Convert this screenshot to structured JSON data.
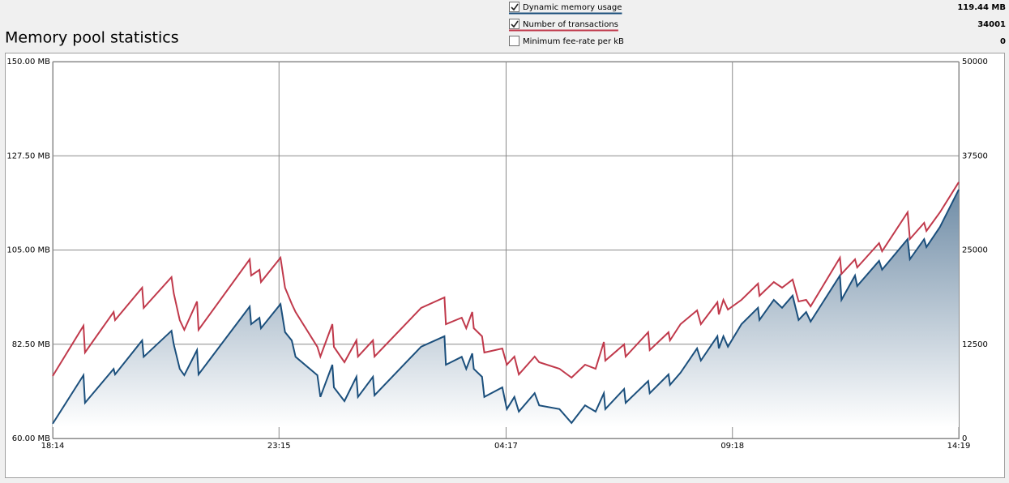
{
  "chart_data": {
    "type": "line",
    "title": "Memory pool statistics",
    "xlim": [
      0,
      1205
    ],
    "xticks": [
      {
        "value": 0,
        "label": "18:14"
      },
      {
        "value": 301,
        "label": "23:15"
      },
      {
        "value": 603,
        "label": "04:17"
      },
      {
        "value": 904,
        "label": "09:18"
      },
      {
        "value": 1205,
        "label": "14:19"
      }
    ],
    "ylim": [
      60,
      150
    ],
    "yticks": [
      {
        "value": 60,
        "label": "60.00 MB"
      },
      {
        "value": 82.5,
        "label": "82.50 MB"
      },
      {
        "value": 105,
        "label": "105.00 MB"
      },
      {
        "value": 127.5,
        "label": "127.50 MB"
      },
      {
        "value": 150,
        "label": "150.00 MB"
      }
    ],
    "y2lim": [
      0,
      50000
    ],
    "y2ticks": [
      0,
      12500,
      25000,
      37500,
      50000
    ],
    "grid": true,
    "x": [
      0,
      41,
      43,
      81,
      83,
      119,
      121,
      158,
      161,
      169,
      175,
      192,
      194,
      262,
      264,
      275,
      277,
      303,
      309,
      318,
      323,
      352,
      356,
      372,
      374,
      388,
      404,
      406,
      426,
      428,
      490,
      521,
      523,
      544,
      550,
      558,
      560,
      571,
      574,
      598,
      604,
      614,
      620,
      641,
      647,
      674,
      690,
      708,
      722,
      733,
      735,
      760,
      762,
      792,
      794,
      819,
      821,
      835,
      857,
      862,
      884,
      886,
      892,
      898,
      916,
      938,
      940,
      959,
      970,
      984,
      992,
      1002,
      1008,
      1047,
      1049,
      1067,
      1070,
      1099,
      1103,
      1137,
      1140,
      1159,
      1162,
      1180,
      1205
    ],
    "series": [
      {
        "name": "Dynamic memory usage",
        "color": "#1b4f7c",
        "checked": true,
        "current": "119.44 MB",
        "area": true,
        "values": [
          63.5,
          75.1,
          68.5,
          76.6,
          75.3,
          83.4,
          79.5,
          85.7,
          82.5,
          76.6,
          75.1,
          81.1,
          75.3,
          91.5,
          87.3,
          88.8,
          86.3,
          92.1,
          85.4,
          83.4,
          79.5,
          75.1,
          69.9,
          77.6,
          72.2,
          68.9,
          74.7,
          69.9,
          74.7,
          70.3,
          81.9,
          84.4,
          77.6,
          79.5,
          76.6,
          80.3,
          76.6,
          74.7,
          69.9,
          72.2,
          67.0,
          69.9,
          66.4,
          70.8,
          67.9,
          67.0,
          63.7,
          67.9,
          66.4,
          70.8,
          67.0,
          71.8,
          68.5,
          73.7,
          70.8,
          75.3,
          72.8,
          75.7,
          81.5,
          78.6,
          84.4,
          81.5,
          84.4,
          81.9,
          87.3,
          91.2,
          88.3,
          93.1,
          91.2,
          94.1,
          88.3,
          90.2,
          87.9,
          98.9,
          93.1,
          98.9,
          96.4,
          102.4,
          100.3,
          107.6,
          102.8,
          107.6,
          105.7,
          110.5,
          119.44
        ]
      },
      {
        "name": "Number of transactions",
        "color": "#c0394b",
        "checked": true,
        "current": "34001",
        "axis": "y2",
        "values": [
          8280,
          14947,
          11398,
          16775,
          15699,
          20000,
          17312,
          21398,
          19248,
          15699,
          14409,
          18173,
          14409,
          23764,
          21614,
          22366,
          20753,
          23979,
          20000,
          17850,
          16775,
          12151,
          10861,
          15162,
          12151,
          10108,
          13011,
          10861,
          13011,
          10861,
          17312,
          18710,
          15162,
          16022,
          14624,
          16775,
          14624,
          13549,
          11398,
          11936,
          9785,
          10861,
          8495,
          10861,
          10108,
          9248,
          8065,
          9785,
          9248,
          12796,
          10323,
          12473,
          10861,
          14086,
          11721,
          14086,
          13011,
          15162,
          16990,
          15162,
          18065,
          16452,
          18388,
          17097,
          18388,
          20538,
          18925,
          20753,
          20000,
          21076,
          18173,
          18388,
          17527,
          23979,
          21828,
          23764,
          22689,
          25914,
          24839,
          30000,
          26452,
          28602,
          27527,
          30000,
          34001
        ]
      }
    ],
    "extra_items": [
      {
        "name": "Minimum fee-rate per kB",
        "checked": false,
        "current": "0"
      }
    ]
  }
}
